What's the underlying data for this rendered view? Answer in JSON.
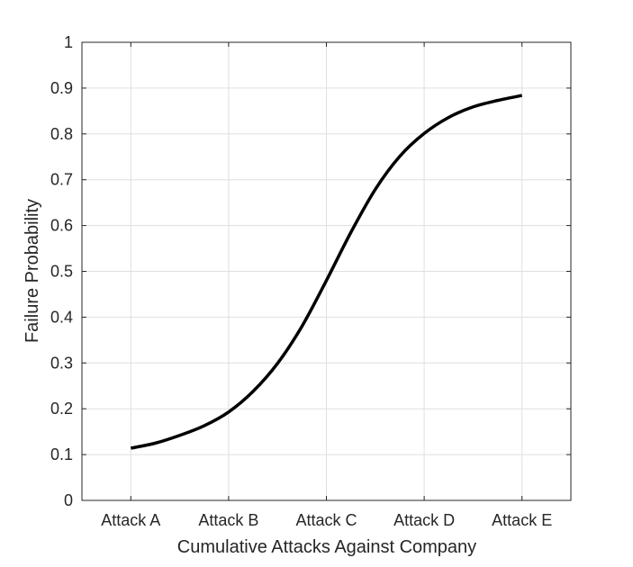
{
  "chart_data": {
    "type": "line",
    "title": "",
    "xlabel": "Cumulative Attacks Against Company",
    "ylabel": "Failure Probability",
    "categories": [
      "Attack A",
      "Attack B",
      "Attack C",
      "Attack D",
      "Attack E"
    ],
    "ylim": [
      0,
      1
    ],
    "yticks": [
      "0",
      "0.1",
      "0.2",
      "0.3",
      "0.4",
      "0.5",
      "0.6",
      "0.7",
      "0.8",
      "0.9",
      "1"
    ],
    "grid": true,
    "legend": "none",
    "colors": {
      "line": "#000000",
      "grid": "#dfdfdf",
      "axis": "#262626"
    },
    "series": [
      {
        "x": [
          1,
          1.25,
          1.5,
          1.75,
          2,
          2.25,
          2.5,
          2.75,
          3,
          3.25,
          3.5,
          3.75,
          4,
          4.25,
          4.5,
          4.75,
          5
        ],
        "values": [
          0.114,
          0.125,
          0.142,
          0.163,
          0.193,
          0.238,
          0.299,
          0.38,
          0.48,
          0.585,
          0.679,
          0.751,
          0.801,
          0.836,
          0.859,
          0.873,
          0.884
        ]
      }
    ]
  }
}
